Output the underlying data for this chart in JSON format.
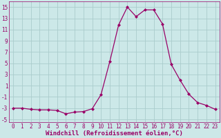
{
  "x": [
    0,
    1,
    2,
    3,
    4,
    5,
    6,
    7,
    8,
    9,
    10,
    11,
    12,
    13,
    14,
    15,
    16,
    17,
    18,
    19,
    20,
    21,
    22,
    23
  ],
  "y": [
    -3,
    -3,
    -3.2,
    -3.3,
    -3.3,
    -3.4,
    -4,
    -3.7,
    -3.6,
    -3.1,
    -0.6,
    5.3,
    11.8,
    15.0,
    13.3,
    14.5,
    14.5,
    12.0,
    4.8,
    2.0,
    -0.5,
    -2.0,
    -2.5,
    -3.2
  ],
  "line_color": "#990066",
  "marker": "D",
  "marker_size": 2.0,
  "bg_color": "#cce8e8",
  "grid_color": "#aacccc",
  "xlabel": "Windchill (Refroidissement éolien,°C)",
  "ylim": [
    -5.5,
    16
  ],
  "xlim_min": -0.5,
  "xlim_max": 23.5,
  "yticks": [
    -5,
    -3,
    -1,
    1,
    3,
    5,
    7,
    9,
    11,
    13,
    15
  ],
  "ytick_labels": [
    "-5",
    "-3",
    "-1",
    "1",
    "3",
    "5",
    "7",
    "9",
    "11",
    "13",
    "15"
  ],
  "xticks": [
    0,
    1,
    2,
    3,
    4,
    5,
    6,
    7,
    8,
    9,
    10,
    11,
    12,
    13,
    14,
    15,
    16,
    17,
    18,
    19,
    20,
    21,
    22,
    23
  ],
  "tick_label_fontsize": 5.5,
  "xlabel_fontsize": 6.5,
  "linewidth": 0.9
}
